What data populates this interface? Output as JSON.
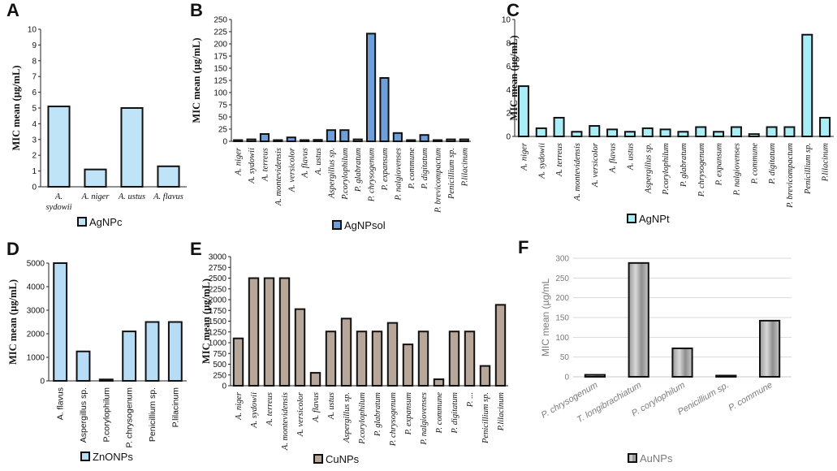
{
  "chart_data": [
    {
      "id": "A",
      "panel_label": "A",
      "type": "bar",
      "ylabel": "MIC mean (µg/mL)",
      "legend": "AgNPc",
      "ylim": [
        0,
        10
      ],
      "yticks": [
        0,
        1,
        2,
        3,
        4,
        5,
        6,
        7,
        8,
        9,
        10
      ],
      "categories": [
        "A. sydowii",
        "A. niger",
        "A. ustus",
        "A. flavus"
      ],
      "values": [
        5.1,
        1.1,
        5.0,
        1.3
      ],
      "color": "#bfe4f7"
    },
    {
      "id": "B",
      "panel_label": "B",
      "type": "bar",
      "ylabel": "MIC mean (µg/mL)",
      "legend": "AgNPsol",
      "ylim": [
        0,
        250
      ],
      "yticks": [
        0,
        25,
        50,
        75,
        100,
        125,
        150,
        175,
        200,
        225,
        250
      ],
      "categories": [
        "A. niger",
        "A. sydowii",
        "A. terreus",
        "A. montevidensis",
        "A. versicolor",
        "A. flavus",
        "A. ustus",
        "Aspergillus sp.",
        "P.corylophilum",
        "P. glabratum",
        "P. chrysogenum",
        "P. expansum",
        "P. nalgiovenses",
        "P. commune",
        "P. digitatum",
        "P. brevicompactum",
        "Penicillium sp.",
        "P.lilacinum"
      ],
      "values": [
        2,
        4,
        15,
        2,
        8,
        2,
        3,
        23,
        23,
        4,
        221,
        130,
        17,
        2,
        13,
        2,
        4,
        4
      ],
      "color": "#6f9fd8"
    },
    {
      "id": "C",
      "panel_label": "C",
      "type": "bar",
      "ylabel": "MIC mean (µg/mL)",
      "legend": "AgNPt",
      "ylim": [
        0,
        10
      ],
      "yticks": [
        0,
        2,
        4,
        6,
        8,
        10
      ],
      "categories": [
        "A. niger",
        "A. sydowii",
        "A. terreus",
        "A. montevidensis",
        "A. versicolor",
        "A. flavus",
        "A. ustus",
        "Aspergillus sp.",
        "P.corylophilum",
        "P. glabratum",
        "P. chrysogenum",
        "P. expansum",
        "P. nalgiovenses",
        "P. commune",
        "P. digitatum",
        "P. brevicompactum",
        "Penicillium sp.",
        "P.lilacinum"
      ],
      "values": [
        4.3,
        0.7,
        1.6,
        0.4,
        0.9,
        0.6,
        0.4,
        0.7,
        0.6,
        0.4,
        0.8,
        0.4,
        0.8,
        0.2,
        0.8,
        0.8,
        8.7,
        1.6
      ],
      "color": "#a9eef6"
    },
    {
      "id": "D",
      "panel_label": "D",
      "type": "bar",
      "ylabel": "MIC mean (µg/mL)",
      "legend": "ZnONPs",
      "ylim": [
        0,
        5000
      ],
      "yticks": [
        0,
        1000,
        2000,
        3000,
        4000,
        5000
      ],
      "categories": [
        "A. flavus",
        "Aspergillus sp.",
        "P.corylophilum",
        "P. chrysogenum",
        "Penicillium sp.",
        "P.lilacinum"
      ],
      "values": [
        5000,
        1250,
        60,
        2100,
        2500,
        2500
      ],
      "color": "#b7dcf5"
    },
    {
      "id": "E",
      "panel_label": "E",
      "type": "bar",
      "ylabel": "MIC mean (µg/mL)",
      "legend": "CuNPs",
      "ylim": [
        0,
        3000
      ],
      "yticks": [
        0,
        250,
        500,
        750,
        1000,
        1250,
        1500,
        1750,
        2000,
        2250,
        2500,
        2750,
        3000
      ],
      "categories": [
        "A. niger",
        "A. sydowii",
        "A. terreus",
        "A. montevidensis",
        "A. versicolor",
        "A. flavus",
        "A. ustus",
        "Aspergillus sp.",
        "P.corylophilum",
        "P. glabratum",
        "P. chrysogenum",
        "P. expansum",
        "P. nalgiovenses",
        "P. commune",
        "P. digitatum",
        "P. ...",
        "Penicillium sp.",
        "P.lilacinum"
      ],
      "values": [
        1100,
        2500,
        2500,
        2500,
        1780,
        300,
        1260,
        1560,
        1260,
        1260,
        1460,
        960,
        1260,
        150,
        1260,
        1260,
        460,
        1880
      ],
      "color": "#b7a69a"
    },
    {
      "id": "F",
      "panel_label": "F",
      "type": "bar",
      "ylabel": "MIC mean (µg/mL",
      "legend": "AuNPs",
      "ylim": [
        0,
        300
      ],
      "yticks": [
        0,
        50,
        100,
        150,
        200,
        250,
        300
      ],
      "categories": [
        "P. chrysogenum",
        "T. longibrachiatum",
        "P. corylophilum",
        "Penicillium sp.",
        "P. commune"
      ],
      "values": [
        5,
        288,
        72,
        3,
        142
      ],
      "color": "#b9b9b9"
    }
  ]
}
